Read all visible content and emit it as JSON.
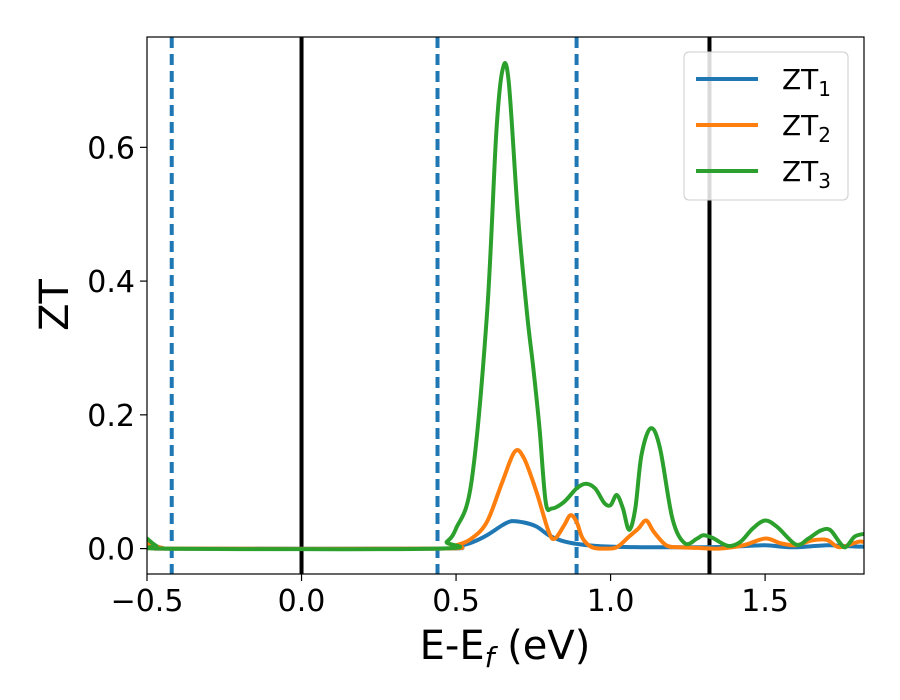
{
  "chart_data": {
    "type": "line",
    "xlabel": "E-E",
    "xlabel_sub": "f",
    "xlabel_unit": " (eV)",
    "ylabel": "ZT",
    "xlim": [
      -0.5,
      1.82
    ],
    "ylim": [
      -0.038,
      0.765
    ],
    "xticks": [
      -0.5,
      0.0,
      0.5,
      1.0,
      1.5
    ],
    "xtick_labels": [
      "−0.5",
      "0.0",
      "0.5",
      "1.0",
      "1.5"
    ],
    "yticks": [
      0.0,
      0.2,
      0.4,
      0.6
    ],
    "ytick_labels": [
      "0.0",
      "0.2",
      "0.4",
      "0.6"
    ],
    "grid": false,
    "legend_position": "top-right",
    "vlines_solid": [
      0.0,
      1.32
    ],
    "vlines_dashed": [
      -0.42,
      0.44,
      0.89
    ],
    "colors": {
      "solid_vline": "#000000",
      "dashed_vline": "#1f77b4"
    },
    "series": [
      {
        "name": "ZT",
        "name_sub": "1",
        "color": "#1f77b4",
        "points": [
          [
            -0.5,
            0.008
          ],
          [
            -0.45,
            0.001
          ],
          [
            -0.4,
            0.0
          ],
          [
            0.44,
            0.0
          ],
          [
            0.5,
            0.003
          ],
          [
            0.55,
            0.009
          ],
          [
            0.6,
            0.02
          ],
          [
            0.65,
            0.035
          ],
          [
            0.68,
            0.041
          ],
          [
            0.72,
            0.039
          ],
          [
            0.76,
            0.033
          ],
          [
            0.8,
            0.02
          ],
          [
            0.84,
            0.012
          ],
          [
            0.89,
            0.007
          ],
          [
            0.95,
            0.004
          ],
          [
            1.0,
            0.003
          ],
          [
            1.1,
            0.002
          ],
          [
            1.2,
            0.002
          ],
          [
            1.3,
            0.002
          ],
          [
            1.4,
            0.003
          ],
          [
            1.5,
            0.005
          ],
          [
            1.55,
            0.003
          ],
          [
            1.6,
            0.002
          ],
          [
            1.7,
            0.005
          ],
          [
            1.75,
            0.004
          ],
          [
            1.8,
            0.003
          ],
          [
            1.82,
            0.003
          ]
        ]
      },
      {
        "name": "ZT",
        "name_sub": "2",
        "color": "#ff7f0e",
        "points": [
          [
            -0.5,
            0.008
          ],
          [
            -0.45,
            0.001
          ],
          [
            -0.4,
            0.0
          ],
          [
            0.44,
            0.0
          ],
          [
            0.5,
            0.005
          ],
          [
            0.55,
            0.015
          ],
          [
            0.6,
            0.04
          ],
          [
            0.65,
            0.1
          ],
          [
            0.69,
            0.145
          ],
          [
            0.72,
            0.135
          ],
          [
            0.76,
            0.085
          ],
          [
            0.8,
            0.025
          ],
          [
            0.82,
            0.015
          ],
          [
            0.85,
            0.035
          ],
          [
            0.87,
            0.05
          ],
          [
            0.89,
            0.04
          ],
          [
            0.91,
            0.015
          ],
          [
            0.94,
            0.002
          ],
          [
            0.98,
            0.0
          ],
          [
            1.02,
            0.002
          ],
          [
            1.06,
            0.018
          ],
          [
            1.09,
            0.03
          ],
          [
            1.115,
            0.042
          ],
          [
            1.14,
            0.025
          ],
          [
            1.18,
            0.005
          ],
          [
            1.22,
            0.002
          ],
          [
            1.28,
            0.001
          ],
          [
            1.35,
            0.0
          ],
          [
            1.43,
            0.005
          ],
          [
            1.5,
            0.015
          ],
          [
            1.55,
            0.008
          ],
          [
            1.6,
            0.005
          ],
          [
            1.65,
            0.012
          ],
          [
            1.7,
            0.013
          ],
          [
            1.74,
            0.002
          ],
          [
            1.8,
            0.01
          ],
          [
            1.82,
            0.01
          ]
        ]
      },
      {
        "name": "ZT",
        "name_sub": "3",
        "color": "#2ca02c",
        "points": [
          [
            -0.5,
            0.015
          ],
          [
            -0.47,
            0.004
          ],
          [
            -0.44,
            0.0
          ],
          [
            0.44,
            0.0
          ],
          [
            0.47,
            0.01
          ],
          [
            0.5,
            0.03
          ],
          [
            0.55,
            0.1
          ],
          [
            0.6,
            0.35
          ],
          [
            0.63,
            0.62
          ],
          [
            0.65,
            0.715
          ],
          [
            0.67,
            0.7
          ],
          [
            0.7,
            0.5
          ],
          [
            0.73,
            0.35
          ],
          [
            0.75,
            0.27
          ],
          [
            0.77,
            0.18
          ],
          [
            0.79,
            0.07
          ],
          [
            0.81,
            0.06
          ],
          [
            0.85,
            0.07
          ],
          [
            0.89,
            0.09
          ],
          [
            0.92,
            0.097
          ],
          [
            0.95,
            0.09
          ],
          [
            0.98,
            0.068
          ],
          [
            1.0,
            0.065
          ],
          [
            1.02,
            0.08
          ],
          [
            1.04,
            0.06
          ],
          [
            1.06,
            0.028
          ],
          [
            1.08,
            0.06
          ],
          [
            1.1,
            0.14
          ],
          [
            1.13,
            0.18
          ],
          [
            1.16,
            0.15
          ],
          [
            1.2,
            0.045
          ],
          [
            1.24,
            0.008
          ],
          [
            1.28,
            0.015
          ],
          [
            1.3,
            0.02
          ],
          [
            1.33,
            0.016
          ],
          [
            1.38,
            0.004
          ],
          [
            1.42,
            0.01
          ],
          [
            1.46,
            0.03
          ],
          [
            1.5,
            0.042
          ],
          [
            1.54,
            0.032
          ],
          [
            1.6,
            0.006
          ],
          [
            1.64,
            0.015
          ],
          [
            1.68,
            0.027
          ],
          [
            1.71,
            0.028
          ],
          [
            1.74,
            0.01
          ],
          [
            1.76,
            0.002
          ],
          [
            1.79,
            0.018
          ],
          [
            1.82,
            0.022
          ]
        ]
      }
    ]
  }
}
